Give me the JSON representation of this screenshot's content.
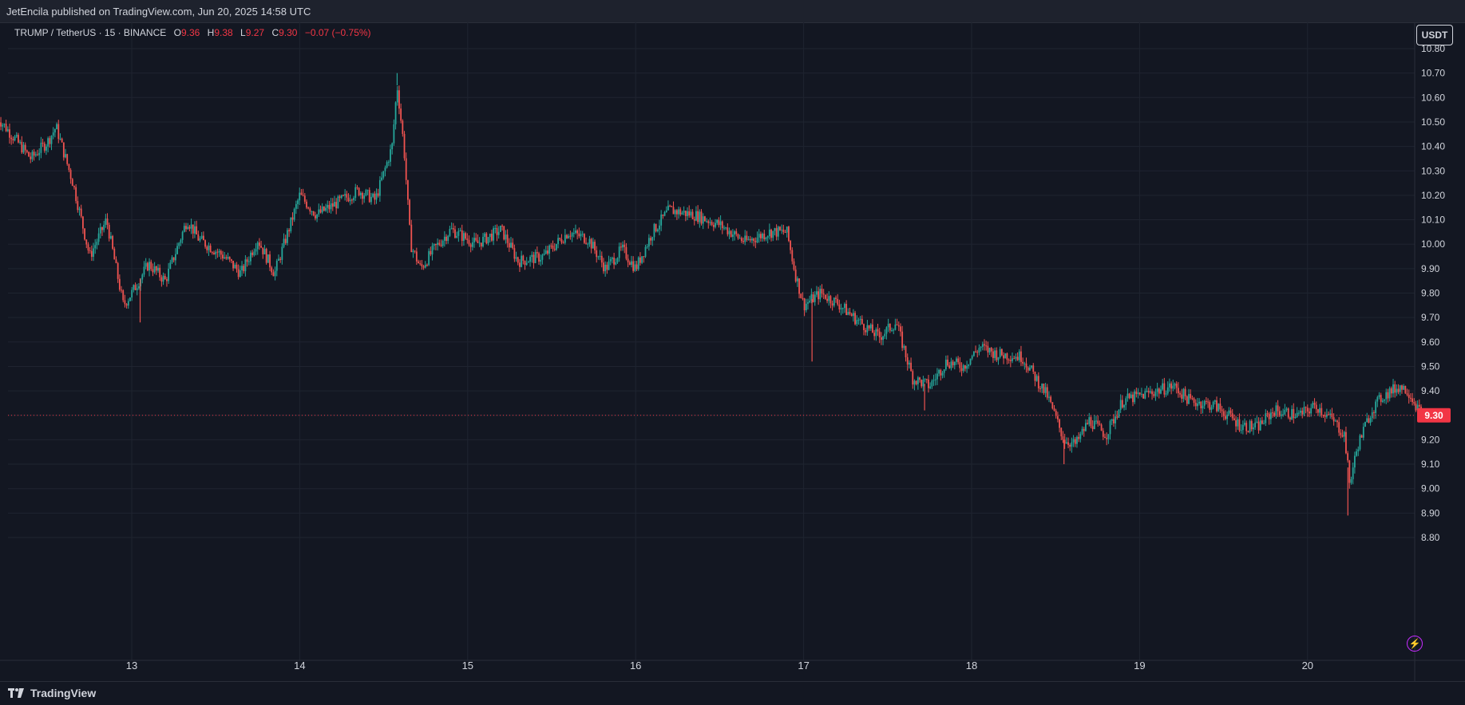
{
  "header": {
    "published": "JetEncila published on TradingView.com, Jun 20, 2025 14:58 UTC"
  },
  "legend": {
    "symbol": "TRUMP / TetherUS · 15 · BINANCE",
    "o_label": "O",
    "o_value": "9.36",
    "h_label": "H",
    "h_value": "9.38",
    "l_label": "L",
    "l_value": "9.27",
    "c_label": "C",
    "c_value": "9.30",
    "change": "−0.07 (−0.75%)"
  },
  "currency_button": "USDT",
  "footer": {
    "brand": "TradingView"
  },
  "colors": {
    "up": "#26a69a",
    "down": "#ef5350",
    "background": "#131722",
    "grid": "#1f2430",
    "price_line": "#f23645"
  },
  "chart_data": {
    "type": "candlestick",
    "title": "",
    "xlabel": "",
    "ylabel": "",
    "ylim": [
      8.75,
      10.85
    ],
    "x_ticks": [
      "13",
      "14",
      "15",
      "16",
      "17",
      "18",
      "19",
      "20"
    ],
    "y_ticks": [
      "10.80",
      "10.70",
      "10.60",
      "10.50",
      "10.40",
      "10.30",
      "10.20",
      "10.10",
      "10.00",
      "9.90",
      "9.80",
      "9.70",
      "9.60",
      "9.50",
      "9.40",
      "9.30",
      "9.20",
      "9.10",
      "9.00",
      "8.90",
      "8.80"
    ],
    "grid": true,
    "last_price": "9.30",
    "path": [
      [
        12.2,
        10.52
      ],
      [
        12.4,
        10.35
      ],
      [
        12.5,
        10.42
      ],
      [
        12.55,
        10.48
      ],
      [
        12.65,
        10.25
      ],
      [
        12.75,
        9.95
      ],
      [
        12.85,
        10.1
      ],
      [
        12.95,
        9.75
      ],
      [
        13.0,
        9.8
      ],
      [
        13.1,
        9.92
      ],
      [
        13.2,
        9.85
      ],
      [
        13.33,
        10.1
      ],
      [
        13.4,
        10.02
      ],
      [
        13.55,
        9.95
      ],
      [
        13.65,
        9.88
      ],
      [
        13.75,
        10.02
      ],
      [
        13.85,
        9.88
      ],
      [
        14.0,
        10.2
      ],
      [
        14.1,
        10.12
      ],
      [
        14.25,
        10.18
      ],
      [
        14.35,
        10.22
      ],
      [
        14.45,
        10.18
      ],
      [
        14.55,
        10.4
      ],
      [
        14.58,
        10.65
      ],
      [
        14.62,
        10.4
      ],
      [
        14.66,
        10.0
      ],
      [
        14.72,
        9.9
      ],
      [
        14.8,
        9.98
      ],
      [
        14.9,
        10.06
      ],
      [
        15.05,
        10.0
      ],
      [
        15.2,
        10.06
      ],
      [
        15.3,
        9.93
      ],
      [
        15.45,
        9.95
      ],
      [
        15.6,
        10.05
      ],
      [
        15.72,
        10.02
      ],
      [
        15.82,
        9.9
      ],
      [
        15.92,
        9.98
      ],
      [
        16.0,
        9.9
      ],
      [
        16.1,
        10.05
      ],
      [
        16.2,
        10.14
      ],
      [
        16.35,
        10.12
      ],
      [
        16.5,
        10.08
      ],
      [
        16.65,
        10.01
      ],
      [
        16.8,
        10.05
      ],
      [
        16.9,
        10.05
      ],
      [
        16.95,
        9.88
      ],
      [
        17.0,
        9.75
      ],
      [
        17.1,
        9.8
      ],
      [
        17.2,
        9.76
      ],
      [
        17.3,
        9.7
      ],
      [
        17.45,
        9.62
      ],
      [
        17.55,
        9.68
      ],
      [
        17.65,
        9.45
      ],
      [
        17.75,
        9.42
      ],
      [
        17.85,
        9.52
      ],
      [
        17.95,
        9.5
      ],
      [
        18.05,
        9.58
      ],
      [
        18.15,
        9.55
      ],
      [
        18.3,
        9.54
      ],
      [
        18.45,
        9.38
      ],
      [
        18.55,
        9.2
      ],
      [
        18.62,
        9.18
      ],
      [
        18.7,
        9.28
      ],
      [
        18.8,
        9.22
      ],
      [
        18.9,
        9.36
      ],
      [
        19.0,
        9.38
      ],
      [
        19.1,
        9.4
      ],
      [
        19.2,
        9.42
      ],
      [
        19.3,
        9.36
      ],
      [
        19.45,
        9.34
      ],
      [
        19.6,
        9.26
      ],
      [
        19.7,
        9.25
      ],
      [
        19.8,
        9.32
      ],
      [
        19.95,
        9.3
      ],
      [
        20.05,
        9.34
      ],
      [
        20.15,
        9.28
      ],
      [
        20.22,
        9.22
      ],
      [
        20.25,
        9.02
      ],
      [
        20.3,
        9.18
      ],
      [
        20.38,
        9.32
      ],
      [
        20.45,
        9.38
      ],
      [
        20.55,
        9.42
      ],
      [
        20.6,
        9.4
      ],
      [
        20.68,
        9.3
      ]
    ],
    "spikes": [
      {
        "x": 14.58,
        "high": 10.7
      },
      {
        "x": 13.05,
        "low": 9.68
      },
      {
        "x": 17.05,
        "low": 9.52
      },
      {
        "x": 18.55,
        "low": 9.1
      },
      {
        "x": 17.72,
        "low": 9.32
      },
      {
        "x": 20.24,
        "low": 8.89
      }
    ]
  }
}
